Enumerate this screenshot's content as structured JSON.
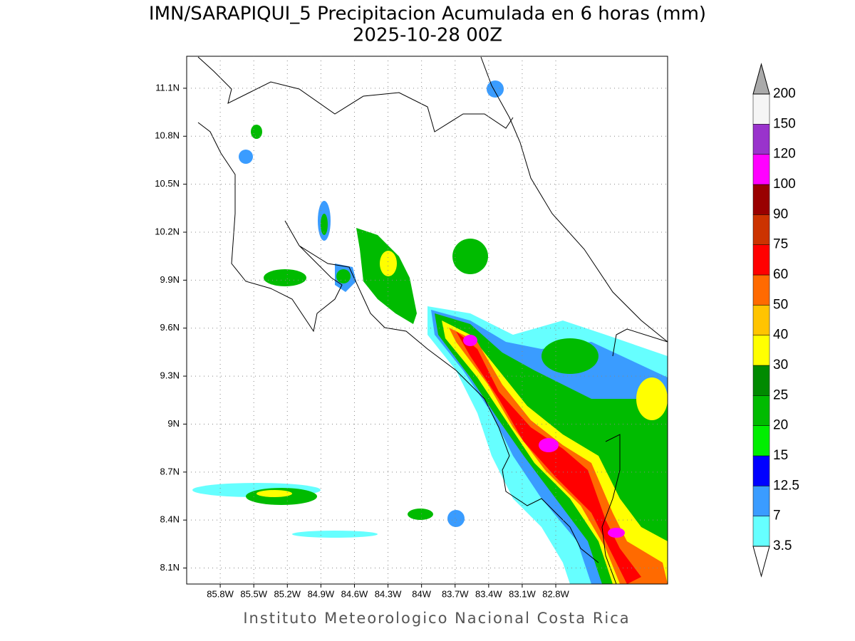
{
  "title": "IMN/SARAPIQUI_5 Precipitacion Acumulada en 6 horas (mm)",
  "subtitle": "2025-10-28 00Z",
  "footer": "Instituto Meteorologico Nacional Costa Rica",
  "map": {
    "xlim": [
      -86.1,
      -81.8
    ],
    "ylim": [
      8.0,
      11.3
    ],
    "grid": true,
    "xticks": [
      {
        "value": -85.8,
        "label": "85.8W"
      },
      {
        "value": -85.5,
        "label": "85.5W"
      },
      {
        "value": -85.2,
        "label": "85.2W"
      },
      {
        "value": -84.9,
        "label": "84.9W"
      },
      {
        "value": -84.6,
        "label": "84.6W"
      },
      {
        "value": -84.3,
        "label": "84.3W"
      },
      {
        "value": -84,
        "label": "84W"
      },
      {
        "value": -83.7,
        "label": "83.7W"
      },
      {
        "value": -83.4,
        "label": "83.4W"
      },
      {
        "value": -83.1,
        "label": "83.1W"
      },
      {
        "value": -82.8,
        "label": "82.8W"
      }
    ],
    "yticks": [
      {
        "value": 8.1,
        "label": "8.1N"
      },
      {
        "value": 8.4,
        "label": "8.4N"
      },
      {
        "value": 8.7,
        "label": "8.7N"
      },
      {
        "value": 9,
        "label": "9N"
      },
      {
        "value": 9.3,
        "label": "9.3N"
      },
      {
        "value": 9.6,
        "label": "9.6N"
      },
      {
        "value": 9.9,
        "label": "9.9N"
      },
      {
        "value": 10.2,
        "label": "10.2N"
      },
      {
        "value": 10.5,
        "label": "10.5N"
      },
      {
        "value": 10.8,
        "label": "10.8N"
      },
      {
        "value": 11.1,
        "label": "11.1N"
      }
    ]
  },
  "colorbar": {
    "levels": [
      3.5,
      7,
      12.5,
      15,
      20,
      25,
      30,
      40,
      50,
      60,
      75,
      90,
      100,
      120,
      150,
      200
    ],
    "colors": [
      "#66ffff",
      "#3a9cff",
      "#0000ff",
      "#00ee00",
      "#00bb00",
      "#008a00",
      "#ffff00",
      "#ffc400",
      "#ff6a00",
      "#ff0000",
      "#cc3300",
      "#990000",
      "#ff00ff",
      "#9933cc",
      "#f5f5f5"
    ],
    "over_color": "#aaaaaa",
    "under_color": "#ffffff"
  }
}
